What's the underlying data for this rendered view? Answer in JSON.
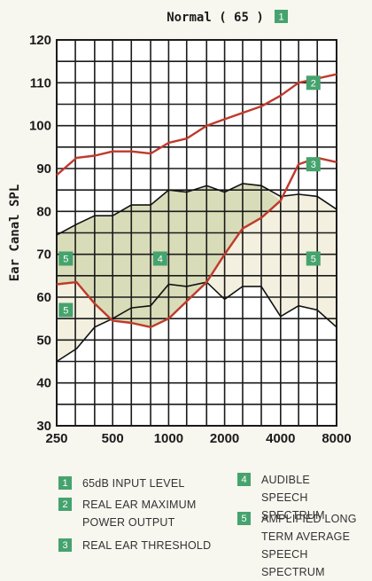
{
  "chart_data": {
    "type": "line",
    "title": "Normal ( 65 )",
    "title_badge": "1",
    "ylabel": "Ear Canal SPL",
    "ylim": [
      30,
      120
    ],
    "yticks": [
      30,
      40,
      50,
      60,
      70,
      80,
      90,
      100,
      110,
      120
    ],
    "x_scale": "log",
    "xticks": [
      250,
      500,
      1000,
      2000,
      4000,
      8000
    ],
    "xticklabels": [
      "250",
      "500",
      "1000",
      "2000",
      "4000",
      "8000"
    ],
    "grid": true,
    "series": [
      {
        "name": "REAL EAR MAXIMUM POWER OUTPUT",
        "badge": "2",
        "x": [
          250,
          320,
          400,
          500,
          630,
          800,
          1000,
          1250,
          1600,
          2000,
          2500,
          3150,
          4000,
          5000,
          6300,
          8000
        ],
        "y": [
          88.5,
          92.5,
          93,
          94,
          94,
          93.5,
          96,
          97,
          100,
          101.5,
          103,
          104.5,
          107,
          110,
          111,
          112
        ]
      },
      {
        "name": "REAL EAR THRESHOLD",
        "badge": "3",
        "x": [
          250,
          320,
          400,
          500,
          630,
          800,
          1000,
          1250,
          1600,
          2000,
          2500,
          3150,
          4000,
          5000,
          6300,
          8000
        ],
        "y": [
          63,
          63.5,
          58.5,
          54.5,
          54,
          53,
          55,
          59,
          63.5,
          70,
          76,
          78.5,
          82.5,
          91,
          92.5,
          91.5
        ]
      }
    ],
    "bands": [
      {
        "name": "AUDIBLE SPEECH SPECTRUM",
        "badge": "4",
        "x": [
          250,
          320,
          400,
          500,
          630,
          800,
          1000,
          1250,
          1600,
          2000,
          2500,
          3150,
          4000
        ],
        "upper": [
          74.5,
          77,
          79,
          79,
          81.5,
          81.5,
          85,
          84.5,
          86,
          84.5,
          86.5,
          86,
          82.5
        ],
        "lower": [
          63,
          63.5,
          58.5,
          54.5,
          54,
          53,
          55,
          59,
          63.5,
          70,
          76,
          78.5,
          82.5
        ]
      },
      {
        "name": "AMPLIFIED LONG TERM AVERAGE SPEECH SPECTRUM",
        "badge": "5",
        "x": [
          250,
          320,
          400,
          500,
          630,
          800,
          1000,
          1250,
          1600,
          2000,
          2500,
          3150,
          4000,
          5000,
          6300,
          8000
        ],
        "upper": [
          74.5,
          77,
          79,
          79,
          81.5,
          81.5,
          85,
          84.5,
          86,
          84.5,
          86.5,
          86,
          83.5,
          84,
          83.5,
          80.5
        ],
        "lower": [
          45,
          48,
          53,
          55,
          57.5,
          58,
          63,
          62.5,
          63.5,
          59.5,
          62.5,
          62.5,
          55.5,
          58,
          57,
          53
        ]
      }
    ],
    "annotations": [
      {
        "badge": "1",
        "label": "65dB INPUT LEVEL"
      },
      {
        "badge": "5",
        "x": 280,
        "y": 69
      },
      {
        "badge": "4",
        "x": 900,
        "y": 69
      },
      {
        "badge": "5",
        "x": 6000,
        "y": 69
      },
      {
        "badge": "5",
        "x": 280,
        "y": 57
      },
      {
        "badge": "2",
        "x": 6000,
        "y": 110
      },
      {
        "badge": "3",
        "x": 6000,
        "y": 91
      }
    ],
    "legend": [
      {
        "badge": "1",
        "label": "65dB INPUT LEVEL"
      },
      {
        "badge": "2",
        "label": "REAL EAR MAXIMUM POWER OUTPUT"
      },
      {
        "badge": "3",
        "label": "REAL EAR THRESHOLD"
      },
      {
        "badge": "4",
        "label": "AUDIBLE SPEECH SPECTRUM"
      },
      {
        "badge": "5",
        "label": "AMPLIFIED LONG TERM AVERAGE SPEECH SPECTRUM"
      }
    ],
    "legend_placement": "bottom",
    "colors": {
      "curve": "#c0392b",
      "audible_fill": "#d9dcb8",
      "amplified_fill": "#f3f0df",
      "badge": "#46a36e",
      "grid": "#1b1b1b"
    }
  }
}
